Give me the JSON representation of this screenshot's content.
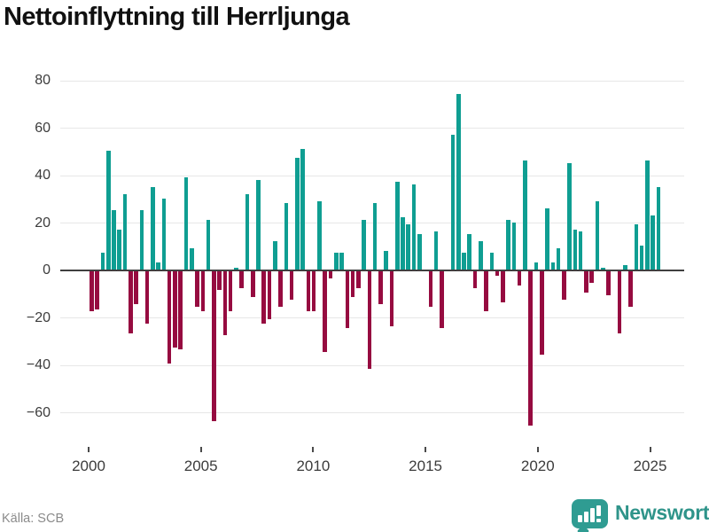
{
  "title": "Nettoinflyttning till Herrljunga",
  "source": "Källa: SCB",
  "logo": {
    "text": "Newsworthy",
    "icon": "speech-bubble-bar-chart-icon",
    "color": "#2f948a"
  },
  "chart_data": {
    "type": "bar",
    "title": "Nettoinflyttning till Herrljunga",
    "x_start": "2000-Q1",
    "x_end": "2025-Q3",
    "frequency": "quarterly",
    "values": [
      -17,
      -16,
      7,
      50,
      25,
      17,
      32,
      -26,
      -14,
      25,
      -22,
      35,
      3,
      30,
      -39,
      -32,
      -33,
      39,
      9,
      -15,
      -17,
      21,
      -63,
      -8,
      -27,
      -17,
      1,
      -7,
      32,
      -11,
      38,
      -22,
      -20,
      12,
      -15,
      28,
      -12,
      47,
      51,
      -17,
      -17,
      29,
      -34,
      -3,
      7,
      7,
      -24,
      -11,
      -7,
      21,
      -41,
      28,
      -14,
      8,
      -23,
      37,
      22,
      19,
      36,
      15,
      0,
      -15,
      16,
      -24,
      0,
      57,
      74,
      7,
      15,
      -7,
      12,
      -17,
      7,
      -2,
      -13,
      21,
      20,
      -6,
      46,
      -65,
      3,
      -35,
      26,
      3,
      9,
      -12,
      45,
      17,
      16,
      -9,
      -5,
      29,
      1,
      -10,
      0,
      -26,
      2,
      -15,
      19,
      10,
      46,
      23,
      35
    ],
    "positive_color": "#0f9e92",
    "negative_color": "#960b40",
    "ylim": [
      -70,
      85
    ],
    "yticks": [
      80,
      60,
      40,
      20,
      0,
      -20,
      -40,
      -60
    ],
    "ytick_labels": [
      "80",
      "60",
      "40",
      "20",
      "0",
      "−20",
      "−40",
      "−60"
    ],
    "xticks": [
      2000,
      2005,
      2010,
      2015,
      2020,
      2025
    ],
    "xtick_labels": [
      "2000",
      "2005",
      "2010",
      "2015",
      "2020",
      "2025"
    ],
    "grid": true,
    "legend": false,
    "zero_line": true
  }
}
